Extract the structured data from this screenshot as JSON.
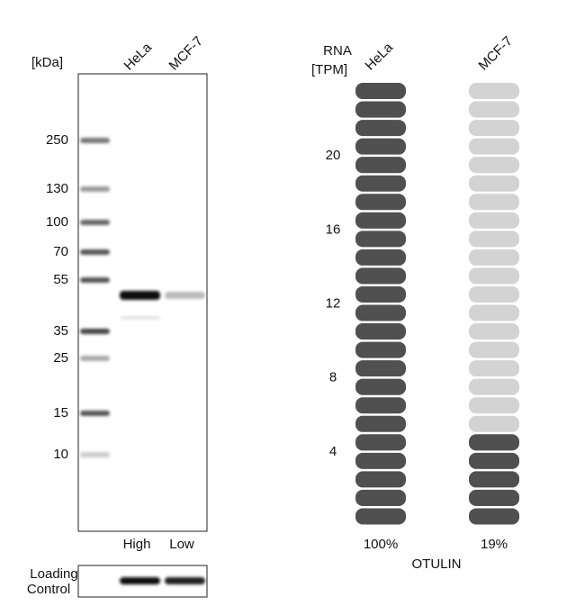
{
  "blot": {
    "kda_label": "[kDa]",
    "lanes": [
      "HeLa",
      "MCF-7"
    ],
    "markers": [
      "250",
      "130",
      "100",
      "70",
      "55",
      "35",
      "25",
      "15",
      "10"
    ],
    "lane_levels": [
      "High",
      "Low"
    ],
    "loading_control": [
      "Loading",
      "Control"
    ]
  },
  "rna": {
    "axis_label": [
      "RNA",
      "[TPM]"
    ],
    "cell_lines": [
      "HeLa",
      "MCF-7"
    ],
    "ylim": [
      0,
      24
    ],
    "yticks": [
      4,
      8,
      12,
      16,
      20
    ],
    "values": [
      100,
      19
    ],
    "value_labels": [
      "100%",
      "19%"
    ],
    "gene": "OTULIN",
    "colors": {
      "filled": "#505050",
      "empty": "#d3d3d3"
    }
  }
}
